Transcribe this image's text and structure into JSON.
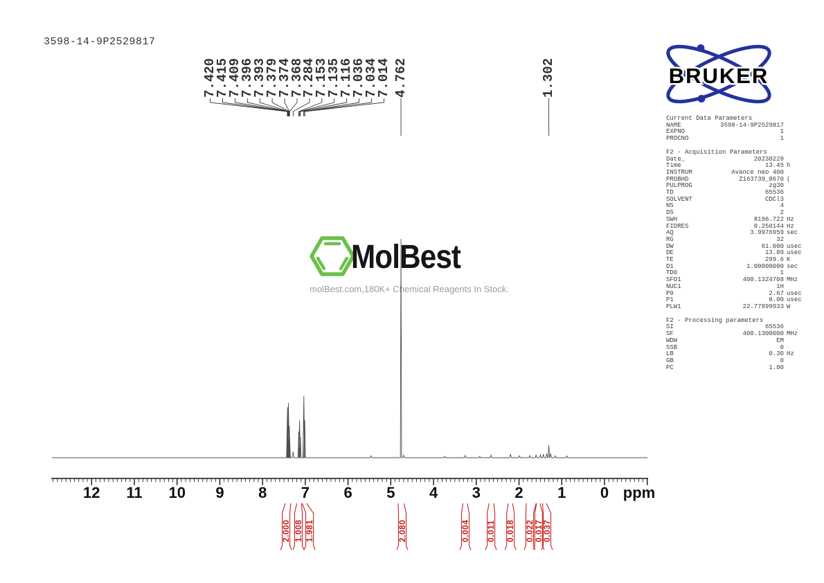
{
  "title": "3598-14-9P2529817",
  "bruker": {
    "brand": "BRUKER",
    "blue": "#24339b"
  },
  "watermark": {
    "name": "MolBest",
    "tagline": "molBest.com,180K+ Chemical Reagents In Stock.",
    "green": "#6cc04a"
  },
  "axis": {
    "ticks": [
      12,
      11,
      10,
      9,
      8,
      7,
      6,
      5,
      4,
      3,
      2,
      1,
      0
    ],
    "unit": "ppm"
  },
  "peak_labels": {
    "aromatic": [
      "7.420",
      "7.415",
      "7.409",
      "7.396",
      "7.393",
      "7.379",
      "7.374",
      "7.368",
      "7.284",
      "7.153",
      "7.135",
      "7.116",
      "7.036",
      "7.034",
      "7.014"
    ],
    "singles": [
      "4.762",
      "1.302"
    ]
  },
  "integral_color": "#c8201e",
  "parameters": {
    "sections": [
      {
        "header": "Current Data Parameters",
        "rows": [
          [
            "NAME",
            "3598-14-9P2529817",
            ""
          ],
          [
            "EXPNO",
            "1",
            ""
          ],
          [
            "PROCNO",
            "1",
            ""
          ]
        ]
      },
      {
        "header": "F2 - Acquisition Parameters",
        "rows": [
          [
            "Date_",
            "20230228",
            ""
          ],
          [
            "Time",
            "13.45",
            "h"
          ],
          [
            "INSTRUM",
            "Avance neo 400",
            ""
          ],
          [
            "PROBHD",
            "Z163739_0670",
            "("
          ],
          [
            "PULPROG",
            "zg30",
            ""
          ],
          [
            "TD",
            "65536",
            ""
          ],
          [
            "SOLVENT",
            "CDCl3",
            ""
          ],
          [
            "NS",
            "4",
            ""
          ],
          [
            "DS",
            "2",
            ""
          ],
          [
            "SWH",
            "8196.722",
            "Hz"
          ],
          [
            "FIDRES",
            "0.250144",
            "Hz"
          ],
          [
            "AQ",
            "3.9976959",
            "sec"
          ],
          [
            "RG",
            "32",
            ""
          ],
          [
            "DW",
            "61.000",
            "usec"
          ],
          [
            "DE",
            "13.89",
            "usec"
          ],
          [
            "TE",
            "299.6",
            "K"
          ],
          [
            "D1",
            "1.00000000",
            "sec"
          ],
          [
            "TD0",
            "1",
            ""
          ],
          [
            "SFO1",
            "400.1324708",
            "MHz"
          ],
          [
            "NUC1",
            "1H",
            ""
          ],
          [
            "P0",
            "2.67",
            "usec"
          ],
          [
            "P1",
            "8.00",
            "usec"
          ],
          [
            "PLW1",
            "22.77899933",
            "W"
          ]
        ]
      },
      {
        "header": "F2 - Processing parameters",
        "rows": [
          [
            "SI",
            "65536",
            ""
          ],
          [
            "SF",
            "400.1300000",
            "MHz"
          ],
          [
            "WDW",
            "EM",
            ""
          ],
          [
            "SSB",
            "0",
            ""
          ],
          [
            "LB",
            "0.30",
            "Hz"
          ],
          [
            "GB",
            "0",
            ""
          ],
          [
            "PC",
            "1.00",
            ""
          ]
        ]
      }
    ]
  },
  "chart_data": {
    "type": "line",
    "title": "3598-14-9P2529817",
    "xlabel": "ppm",
    "x_range": [
      13,
      -1
    ],
    "x_axis_reversed": true,
    "grid": false,
    "peak_list_ppm": [
      7.42,
      7.415,
      7.409,
      7.396,
      7.393,
      7.379,
      7.374,
      7.368,
      7.284,
      7.153,
      7.135,
      7.116,
      7.036,
      7.034,
      7.014,
      4.762,
      1.302
    ],
    "series": [
      {
        "name": "1H spectrum",
        "peaks": [
          [
            7.42,
            0.19
          ],
          [
            7.415,
            0.23
          ],
          [
            7.409,
            0.155
          ],
          [
            7.396,
            0.25
          ],
          [
            7.393,
            0.205
          ],
          [
            7.379,
            0.12
          ],
          [
            7.374,
            0.145
          ],
          [
            7.368,
            0.1
          ],
          [
            7.284,
            0.028
          ],
          [
            7.153,
            0.12
          ],
          [
            7.135,
            0.171
          ],
          [
            7.116,
            0.095
          ],
          [
            7.036,
            0.26
          ],
          [
            7.034,
            0.282
          ],
          [
            7.014,
            0.171
          ],
          [
            5.46,
            0.009
          ],
          [
            4.762,
            1.0
          ],
          [
            4.7,
            0.011
          ],
          [
            3.74,
            0.006
          ],
          [
            3.26,
            0.01
          ],
          [
            2.92,
            0.006
          ],
          [
            2.655,
            0.012
          ],
          [
            2.2,
            0.016
          ],
          [
            1.99,
            0.009
          ],
          [
            1.75,
            0.01
          ],
          [
            1.6,
            0.012
          ],
          [
            1.5,
            0.013
          ],
          [
            1.43,
            0.016
          ],
          [
            1.35,
            0.019
          ],
          [
            1.302,
            0.057
          ],
          [
            1.26,
            0.019
          ],
          [
            1.15,
            0.009
          ],
          [
            0.88,
            0.008
          ]
        ]
      }
    ],
    "integrals": [
      {
        "value": "2.000",
        "region_ppm": [
          7.47,
          7.34
        ],
        "center_ppm": 7.45
      },
      {
        "value": "1.008",
        "region_ppm": [
          7.2,
          7.09
        ],
        "center_ppm": 7.16
      },
      {
        "value": "1.981",
        "region_ppm": [
          7.07,
          6.97
        ],
        "center_ppm": 6.9
      },
      {
        "value": "2.080",
        "region_ppm": [
          4.83,
          4.69
        ],
        "center_ppm": 4.73
      },
      {
        "value": "0.004",
        "region_ppm": [
          3.31,
          3.21
        ],
        "center_ppm": 3.256
      },
      {
        "value": "0.011",
        "region_ppm": [
          2.7,
          2.59
        ],
        "center_ppm": 2.655
      },
      {
        "value": "0.018",
        "region_ppm": [
          2.25,
          2.15
        ],
        "center_ppm": 2.2
      },
      {
        "value": "0.022",
        "region_ppm": [
          1.83,
          1.6
        ],
        "center_ppm": 1.75
      },
      {
        "value": "0.017",
        "region_ppm": [
          1.59,
          1.51
        ],
        "center_ppm": 1.54
      },
      {
        "value": "0.037",
        "region_ppm": [
          1.45,
          1.36
        ],
        "center_ppm": 1.345
      }
    ]
  }
}
